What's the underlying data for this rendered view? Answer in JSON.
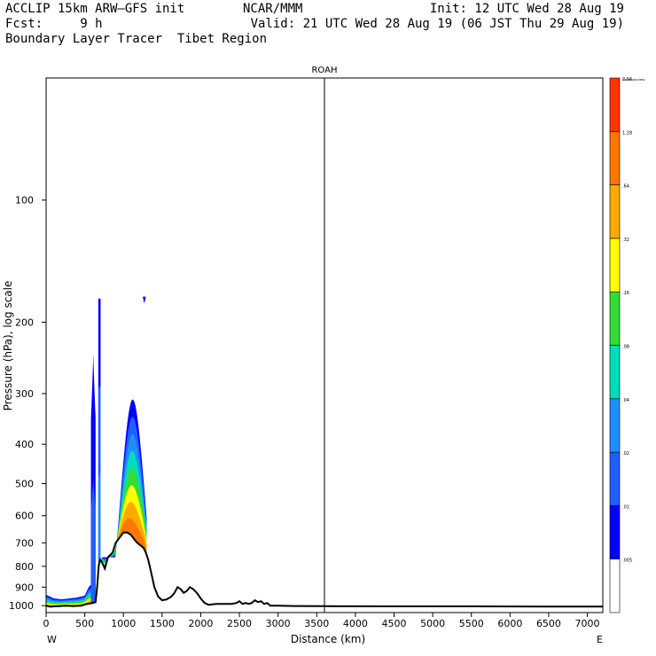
{
  "header": {
    "model": "ACCLIP 15km ARW–GFS init",
    "org": "NCAR/MMM",
    "init": "Init: 12 UTC Wed 28 Aug 19",
    "fcst_label": "Fcst:",
    "fcst_value": "9 h",
    "valid": "Valid: 21 UTC Wed 28 Aug 19 (06 JST Thu 29 Aug 19)",
    "subtitle": "Boundary Layer Tracer  Tibet Region"
  },
  "chart_data": {
    "type": "heatmap",
    "title": "ROAH",
    "xlabel": "Distance (km)",
    "ylabel": "Pressure (hPa), log scale",
    "xlim": [
      0,
      7200
    ],
    "ylim_hpa": [
      1040,
      50
    ],
    "x_ticks": [
      0,
      500,
      1000,
      1500,
      2000,
      2500,
      3000,
      3500,
      4000,
      4500,
      5000,
      5500,
      6000,
      6500,
      7000
    ],
    "y_ticks": [
      100,
      200,
      300,
      400,
      500,
      600,
      700,
      800,
      900,
      1000
    ],
    "left_end_label": "W",
    "right_end_label": "E",
    "marker_x_km": 3600,
    "legend": {
      "levels": [
        ".005",
        ".01",
        ".02",
        ".04",
        ".08",
        ".16",
        ".32",
        ".64",
        "1.28",
        "2.56",
        "Dimensionless"
      ],
      "colors": [
        "#ffffff",
        "#0000ff",
        "#1f5fff",
        "#1e8fff",
        "#00ddbb",
        "#33dd33",
        "#ffff00",
        "#ffaa00",
        "#ff7700",
        "#ff3300"
      ]
    },
    "terrain": {
      "x_km": [
        0,
        50,
        150,
        250,
        350,
        450,
        530,
        600,
        640,
        660,
        680,
        700,
        720,
        760,
        800,
        860,
        900,
        950,
        1000,
        1050,
        1100,
        1150,
        1180,
        1220,
        1260,
        1290,
        1320,
        1360,
        1400,
        1450,
        1500,
        1560,
        1620,
        1660,
        1700,
        1740,
        1780,
        1820,
        1860,
        1900,
        1950,
        2000,
        2050,
        2100,
        2200,
        2300,
        2400,
        2460,
        2500,
        2540,
        2580,
        2620,
        2660,
        2700,
        2740,
        2780,
        2820,
        2860,
        2900,
        3000,
        3200,
        3600,
        4500,
        5500,
        6500,
        7200
      ],
      "p_hpa": [
        1000,
        1005,
        1003,
        1000,
        1002,
        1000,
        990,
        985,
        980,
        900,
        800,
        770,
        780,
        810,
        760,
        740,
        700,
        680,
        660,
        660,
        670,
        690,
        700,
        710,
        720,
        740,
        770,
        830,
        900,
        950,
        970,
        965,
        950,
        930,
        900,
        910,
        930,
        920,
        900,
        910,
        930,
        960,
        985,
        995,
        990,
        990,
        990,
        985,
        975,
        990,
        985,
        990,
        985,
        970,
        980,
        975,
        990,
        985,
        1000,
        1000,
        1002,
        1003,
        1004,
        1004,
        1005,
        1005
      ]
    },
    "tracer_plumes": [
      {
        "name": "surface-layer",
        "x_km": [
          0,
          100,
          200,
          300,
          400,
          500,
          550,
          600
        ],
        "top_hpa": [
          940,
          960,
          965,
          960,
          955,
          945,
          900,
          880
        ],
        "peak": ".64"
      },
      {
        "name": "western-tower",
        "x_km": [
          680,
          700
        ],
        "top_hpa": [
          180,
          800
        ],
        "peak": ".04"
      },
      {
        "name": "cold-patch",
        "x_km": [
          580,
          640
        ],
        "top_hpa": [
          240,
          350
        ],
        "peak": ".02"
      },
      {
        "name": "central-column",
        "x_km": [
          800,
          1300
        ],
        "top_hpa": [
          320,
          700
        ],
        "peak": "1.28"
      }
    ]
  }
}
